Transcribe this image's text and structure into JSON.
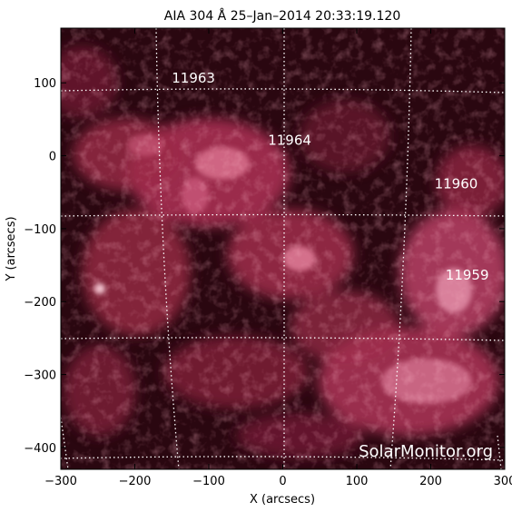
{
  "title": "AIA 304 Å 25–Jan–2014 20:33:19.120",
  "xlabel": "X (arcsecs)",
  "ylabel": "Y (arcsecs)",
  "watermark": "SolarMonitor.org",
  "colors": {
    "background": "#ffffff",
    "sun_base": "#2a0710",
    "axes": "#000000",
    "grid": "#ffffff",
    "labels": "#ffffff"
  },
  "chart_data": {
    "type": "heatmap",
    "xlim": [
      -300,
      300
    ],
    "ylim": [
      -430,
      175
    ],
    "x_ticks": [
      -300,
      -200,
      -100,
      0,
      100,
      200,
      300
    ],
    "y_ticks": [
      100,
      0,
      -100,
      -200,
      -300,
      -400
    ],
    "x_tick_labels": [
      "−300",
      "−200",
      "−100",
      "0",
      "100",
      "200",
      "300"
    ],
    "y_tick_labels": [
      "100",
      "0",
      "−100",
      "−200",
      "−300",
      "−400"
    ],
    "regions": [
      {
        "label": "11963",
        "x": -150,
        "y": 100
      },
      {
        "label": "11964",
        "x": -20,
        "y": 15
      },
      {
        "label": "11960",
        "x": 205,
        "y": -45
      },
      {
        "label": "11959",
        "x": 220,
        "y": -170
      }
    ]
  }
}
